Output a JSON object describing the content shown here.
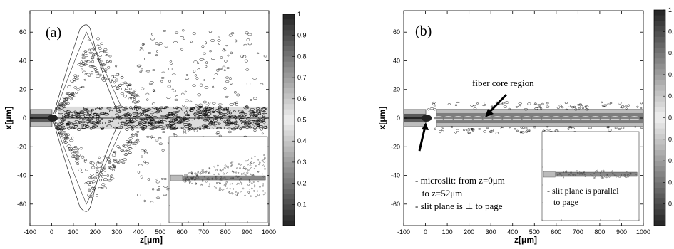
{
  "chart_data": [
    {
      "type": "heatmap",
      "panel_label": "(a)",
      "xlabel": "z[μm]",
      "ylabel": "x[μm]",
      "xlim": [
        -100,
        1000
      ],
      "ylim": [
        -75,
        75
      ],
      "x_ticks": [
        -100,
        0,
        100,
        200,
        300,
        400,
        500,
        600,
        700,
        800,
        900,
        1000
      ],
      "y_ticks": [
        60,
        40,
        20,
        0,
        -20,
        -40,
        -60
      ],
      "colorbar": {
        "range": [
          0,
          1
        ],
        "ticks": [
          "1",
          "0.9",
          "0.8",
          "0.7",
          "0.6",
          "0.5",
          "0.4",
          "0.3",
          "0.2",
          "0.1"
        ]
      },
      "inset": true,
      "annotations": []
    },
    {
      "type": "heatmap",
      "panel_label": "(b)",
      "xlabel": "z[μm]",
      "ylabel": "x[μm]",
      "xlim": [
        -100,
        1000
      ],
      "ylim": [
        -75,
        75
      ],
      "x_ticks": [
        -100,
        0,
        100,
        200,
        300,
        400,
        500,
        600,
        700,
        800,
        900,
        1000
      ],
      "y_ticks": [
        60,
        40,
        20,
        0,
        -20,
        -40,
        -60
      ],
      "colorbar": {
        "range": [
          0,
          1
        ],
        "ticks": [
          "1",
          "0.",
          "0.",
          "0.",
          "0.",
          "0.",
          "0.",
          "0.",
          "0.",
          "0."
        ]
      },
      "inset": true,
      "annotations": [
        {
          "lines": [
            "fiber core region"
          ]
        },
        {
          "lines": [
            "- microslit: from z=0μm",
            "   to z=52μm",
            "- slit plane is ⊥ to page"
          ]
        },
        {
          "lines": [
            "- slit plane is parallel",
            "   to page"
          ]
        }
      ]
    }
  ]
}
